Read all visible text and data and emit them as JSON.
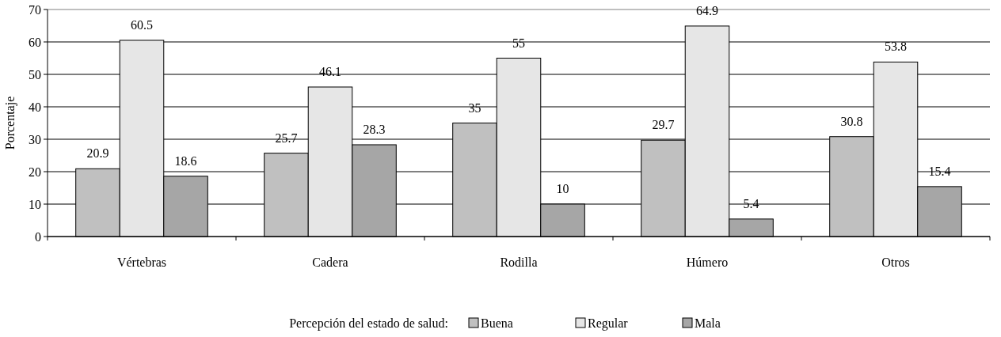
{
  "chart_data": {
    "type": "bar",
    "ylabel": "Porcentaje",
    "legend_title": "Percepción del estado de salud:",
    "categories": [
      "Vértebras",
      "Cadera",
      "Rodilla",
      "Húmero",
      "Otros"
    ],
    "series": [
      {
        "name": "Buena",
        "color": "#c0c0c0",
        "values": [
          20.9,
          25.7,
          35,
          29.7,
          30.8
        ]
      },
      {
        "name": "Regular",
        "color": "#e6e6e6",
        "values": [
          60.5,
          46.1,
          55,
          64.9,
          53.8
        ]
      },
      {
        "name": "Mala",
        "color": "#a6a6a6",
        "values": [
          18.6,
          28.3,
          10,
          5.4,
          15.4
        ]
      }
    ],
    "ylim": [
      0,
      70
    ],
    "yticks": [
      0,
      10,
      20,
      30,
      40,
      50,
      60,
      70
    ],
    "grid": "y",
    "data_labels": true,
    "legend": "bottom"
  }
}
